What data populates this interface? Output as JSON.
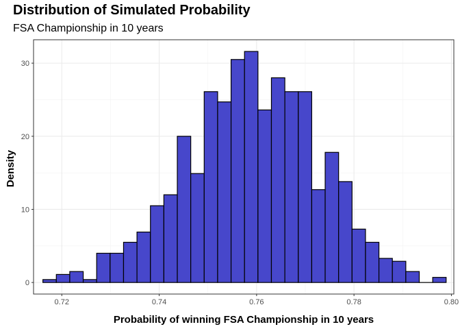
{
  "chart_data": {
    "type": "bar",
    "title": "Distribution of Simulated Probability",
    "subtitle": "FSA Championship in 10 years",
    "xlabel": "Probability of winning FSA Championship in 10 years",
    "ylabel": "Density",
    "xlim": [
      0.7142,
      0.8005
    ],
    "ylim": [
      -1.58,
      33.2
    ],
    "x_ticks": [
      0.72,
      0.74,
      0.76,
      0.78,
      0.8
    ],
    "x_tick_labels": [
      "0.72",
      "0.74",
      "0.76",
      "0.78",
      "0.80"
    ],
    "y_ticks": [
      0,
      10,
      20,
      30
    ],
    "y_tick_labels": [
      "0",
      "10",
      "20",
      "30"
    ],
    "bin_width": 0.00276,
    "bin_centers": [
      0.7175,
      0.72026,
      0.72302,
      0.72578,
      0.72854,
      0.7313,
      0.73406,
      0.73682,
      0.73958,
      0.74234,
      0.7451,
      0.74786,
      0.75062,
      0.75338,
      0.75614,
      0.7589,
      0.76166,
      0.76442,
      0.76718,
      0.76994,
      0.7727,
      0.77546,
      0.77822,
      0.78098,
      0.78374,
      0.7865,
      0.78926,
      0.79202,
      0.79478,
      0.79754
    ],
    "values": [
      0.4,
      1.1,
      1.5,
      0.4,
      4.0,
      4.0,
      5.5,
      6.9,
      10.5,
      12.0,
      20.0,
      14.9,
      26.1,
      24.7,
      30.5,
      31.6,
      23.6,
      28.0,
      26.1,
      26.1,
      12.7,
      17.8,
      13.8,
      7.3,
      5.5,
      3.3,
      2.9,
      1.5,
      0.0,
      0.7
    ],
    "bar_color": "#4747CB",
    "bar_outline": "#000000",
    "grid": true,
    "legend": "none"
  }
}
